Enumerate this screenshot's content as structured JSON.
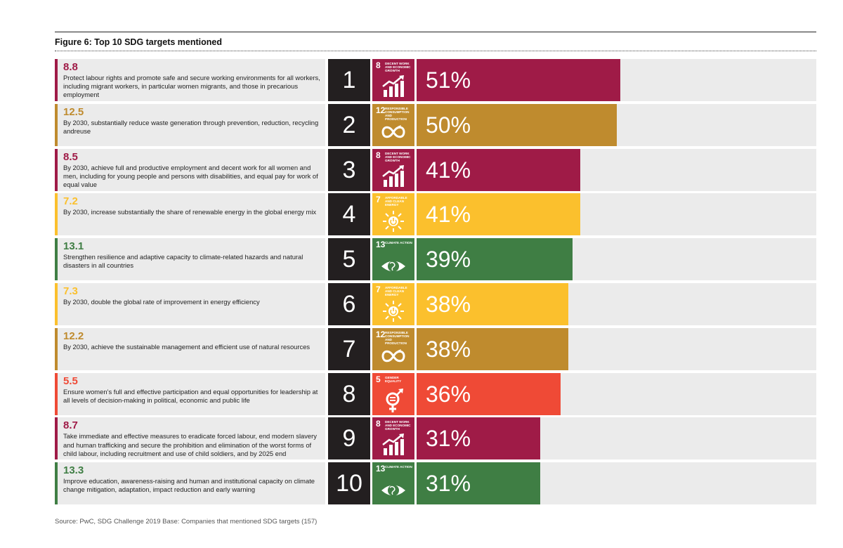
{
  "figure": {
    "title": "Figure 6: Top 10 SDG targets mentioned",
    "source": "Source: PwC, SDG Challenge 2019  Base: Companies that mentioned SDG targets (157)"
  },
  "colors": {
    "goal8": "#9f1b47",
    "goal12": "#bf8b2e",
    "goal7": "#fbc02d",
    "goal13": "#3f7e44",
    "goal5": "#ef4a36",
    "rank_bg": "#231f20",
    "track_bg": "#ebebeb"
  },
  "chart_data": {
    "type": "bar",
    "orientation": "horizontal",
    "title": "Figure 6: Top 10 SDG targets mentioned",
    "xlim": [
      0,
      100
    ],
    "value_unit": "%",
    "grid": false,
    "rows": [
      {
        "rank": "1",
        "target": "8.8",
        "goal": "8",
        "goal_name": "Decent work and economic growth",
        "icon": "growth-chart-icon",
        "value": 51,
        "description": "Protect labour rights and promote safe and secure working environments for all workers, including migrant workers, in particular women migrants, and those in precarious employment"
      },
      {
        "rank": "2",
        "target": "12.5",
        "goal": "12",
        "goal_name": "Responsible consumption and production",
        "icon": "infinity-loop-icon",
        "value": 50,
        "description": "By 2030, substantially reduce waste generation through prevention, reduction, recycling andreuse"
      },
      {
        "rank": "3",
        "target": "8.5",
        "goal": "8",
        "goal_name": "Decent work and economic growth",
        "icon": "growth-chart-icon",
        "value": 41,
        "description": "By 2030, achieve full and productive employment and decent work for all women and men, including for young people and persons with disabilities, and equal pay for work of equal value"
      },
      {
        "rank": "4",
        "target": "7.2",
        "goal": "7",
        "goal_name": "Affordable and clean energy",
        "icon": "sun-power-icon",
        "value": 41,
        "description": "By 2030, increase substantially the share of renewable energy in the global energy mix"
      },
      {
        "rank": "5",
        "target": "13.1",
        "goal": "13",
        "goal_name": "Climate action",
        "icon": "earth-eye-icon",
        "value": 39,
        "description": "Strengthen resilience and adaptive capacity to climate-related hazards and natural disasters in all countries"
      },
      {
        "rank": "6",
        "target": "7.3",
        "goal": "7",
        "goal_name": "Affordable and clean energy",
        "icon": "sun-power-icon",
        "value": 38,
        "description": "By 2030, double the global rate of improvement in energy efficiency"
      },
      {
        "rank": "7",
        "target": "12.2",
        "goal": "12",
        "goal_name": "Responsible consumption and production",
        "icon": "infinity-loop-icon",
        "value": 38,
        "description": "By 2030, achieve the sustainable management and efficient use of natural resources"
      },
      {
        "rank": "8",
        "target": "5.5",
        "goal": "5",
        "goal_name": "Gender equality",
        "icon": "gender-symbol-icon",
        "value": 36,
        "description": "Ensure women’s full and effective participation and equal opportunities for leadership at all levels of decision-making in political, economic and public life"
      },
      {
        "rank": "9",
        "target": "8.7",
        "goal": "8",
        "goal_name": "Decent work and economic growth",
        "icon": "growth-chart-icon",
        "value": 31,
        "description": "Take immediate and effective measures to eradicate forced labour, end modern slavery and human trafficking and secure the prohibition and elimination of the worst forms of child labour, including recruitment and use of child soldiers, and by 2025 end"
      },
      {
        "rank": "10",
        "target": "13.3",
        "goal": "13",
        "goal_name": "Climate action",
        "icon": "earth-eye-icon",
        "value": 31,
        "description": "Improve education, awareness-raising and human and institutional capacity on climate change mitigation, adaptation, impact reduction and early warning"
      }
    ]
  }
}
